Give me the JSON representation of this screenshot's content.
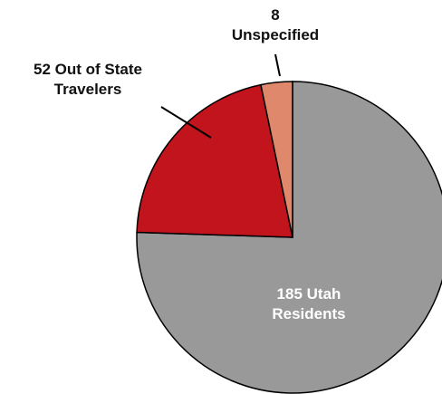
{
  "chart_data": {
    "type": "pie",
    "categories": [
      "Utah Residents",
      "Out of State Travelers",
      "Unspecified"
    ],
    "values": [
      185,
      52,
      8
    ],
    "colors": [
      "#999999",
      "#c1141c",
      "#e0886b"
    ]
  }
}
